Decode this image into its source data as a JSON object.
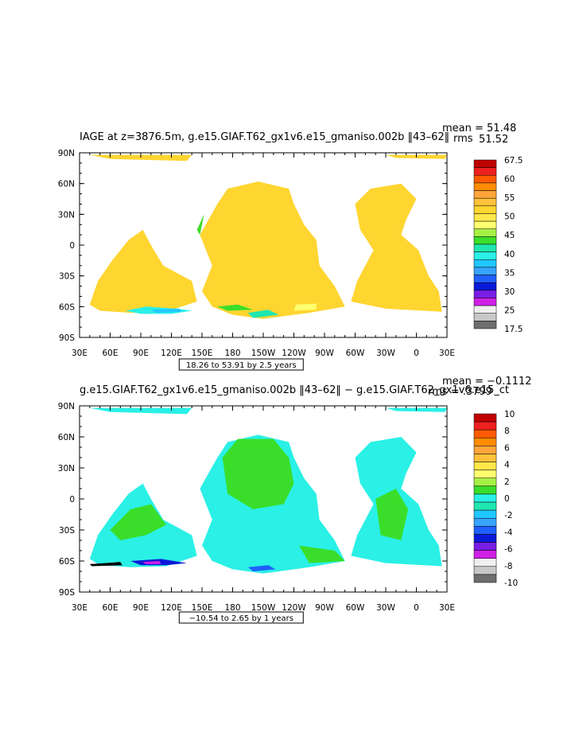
{
  "chart_data": [
    {
      "type": "heatmap",
      "title": "IAGE at z=3876.5m, g.e15.GIAF.T62_gx1v6.e15_gmaniso.002b ‖43–62‖",
      "stats": {
        "mean": "mean = 51.48",
        "rms": "rms",
        "rms_value": "51.52"
      },
      "subtitle": "18.26 to 53.91 by 2.5 years",
      "x_ticks": [
        "30E",
        "60E",
        "90E",
        "120E",
        "150E",
        "180",
        "150W",
        "120W",
        "90W",
        "60W",
        "30W",
        "0",
        "30E"
      ],
      "y_ticks": [
        "90N",
        "60N",
        "30N",
        "0",
        "30S",
        "60S",
        "90S"
      ],
      "xlim_lon": [
        30,
        390
      ],
      "ylim_lat": [
        -90,
        90
      ],
      "colorbar": {
        "labels": [
          "67.5",
          "60",
          "55",
          "50",
          "45",
          "40",
          "35",
          "30",
          "25",
          "17.5"
        ],
        "colors": [
          "#c00000",
          "#ee2020",
          "#ff5a00",
          "#ff8c00",
          "#ffa53a",
          "#ffc23a",
          "#ffd530",
          "#ffe84a",
          "#ffff70",
          "#a6f046",
          "#3ade2a",
          "#20e6b0",
          "#2af0e6",
          "#20c8ff",
          "#38a4ff",
          "#2060ff",
          "#0a1ad8",
          "#7a1ee6",
          "#d020e6",
          "#f0f0f0",
          "#c8c8c8",
          "#6e6e6e"
        ]
      },
      "field_summary": "Ocean at depth mostly 50–52.5 years (#ffd530); young water 30–45 years near Antarctic coast."
    },
    {
      "type": "heatmap",
      "title": "g.e15.GIAF.T62_gx1v6.e15_gmaniso.002b ‖43–62‖ − g.e15.GIAF.T62_gx1v6.e15_ct",
      "stats": {
        "mean": "mean = −0.1112",
        "rms": "rms = .3799"
      },
      "subtitle": "−10.54 to 2.65 by 1 years",
      "x_ticks": [
        "30E",
        "60E",
        "90E",
        "120E",
        "150E",
        "180",
        "150W",
        "120W",
        "90W",
        "60W",
        "30W",
        "0",
        "30E"
      ],
      "y_ticks": [
        "90N",
        "60N",
        "30N",
        "0",
        "30S",
        "60S",
        "90S"
      ],
      "xlim_lon": [
        30,
        390
      ],
      "ylim_lat": [
        -90,
        90
      ],
      "colorbar": {
        "labels": [
          "10",
          "8",
          "6",
          "4",
          "2",
          "0",
          "-2",
          "-4",
          "-6",
          "-8",
          "-10"
        ],
        "colors": [
          "#c00000",
          "#ee2020",
          "#ff5a00",
          "#ff8c00",
          "#ffa53a",
          "#ffc23a",
          "#ffe84a",
          "#ffff70",
          "#a6f046",
          "#3ade2a",
          "#2af0e6",
          "#20e6b0",
          "#20c8ff",
          "#38a4ff",
          "#2060ff",
          "#0a1ad8",
          "#7a1ee6",
          "#d020e6",
          "#f0f0f0",
          "#c8c8c8",
          "#6e6e6e"
        ]
      },
      "field_summary": "Differences mostly between −1 and +1 years; large negative values near Antarctic margins."
    }
  ]
}
